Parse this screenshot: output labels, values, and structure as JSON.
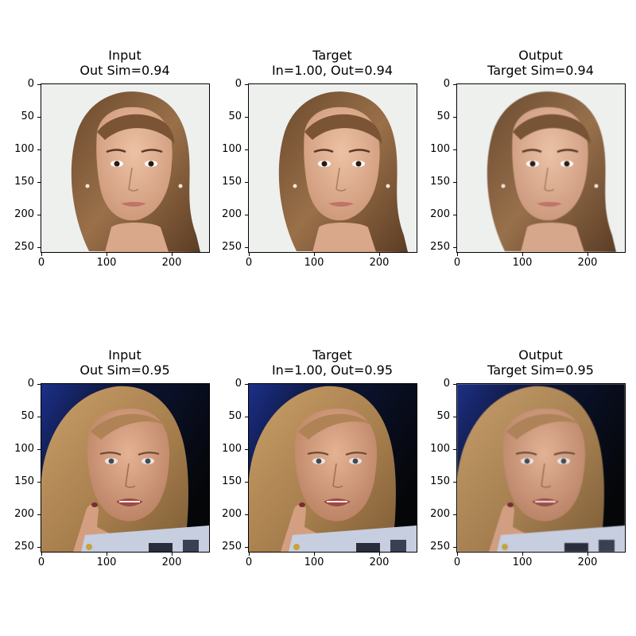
{
  "panels": [
    {
      "line1": "Input",
      "line2": "Out Sim=0.94"
    },
    {
      "line1": "Target",
      "line2": "In=1.00, Out=0.94"
    },
    {
      "line1": "Output",
      "line2": "Target Sim=0.94"
    },
    {
      "line1": "Input",
      "line2": "Out Sim=0.95"
    },
    {
      "line1": "Target",
      "line2": "In=1.00, Out=0.95"
    },
    {
      "line1": "Output",
      "line2": "Target Sim=0.95"
    }
  ],
  "x_ticks": [
    "0",
    "100",
    "200"
  ],
  "y_ticks": [
    "0",
    "50",
    "100",
    "150",
    "200",
    "250"
  ],
  "colors": {
    "row1_background": "#eef0ee",
    "row1_hair": "#8a6440",
    "row1_skin": "#e3b294",
    "row2_background_top": "#1c2f8a",
    "row2_background": "#050608",
    "row2_hair": "#b48a58",
    "row2_skin": "#d9a584"
  }
}
